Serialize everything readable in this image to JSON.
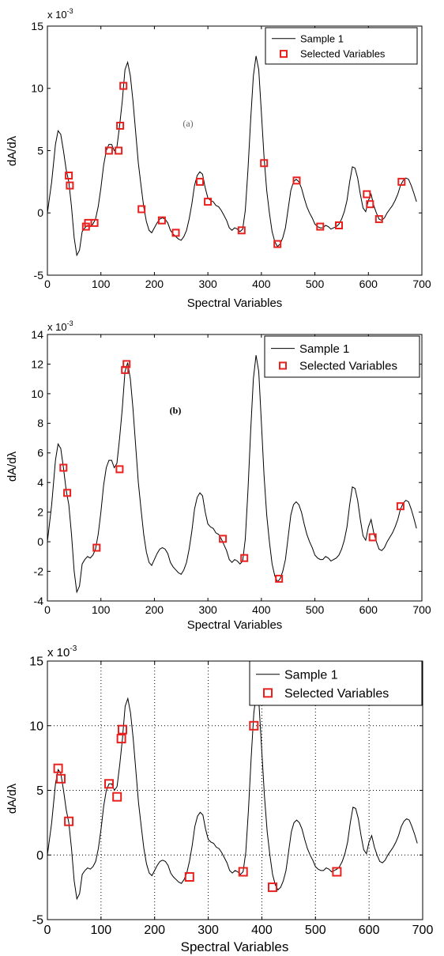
{
  "chart_data": [
    {
      "type": "line",
      "annotation": "(a)",
      "annotation_color": "#666666",
      "scale_label": "x 10",
      "scale_exponent": "-3",
      "xlabel": "Spectral Variables",
      "ylabel": "dA/dλ",
      "xlim": [
        0,
        700
      ],
      "ylim": [
        -5,
        15
      ],
      "xticks": [
        0,
        100,
        200,
        300,
        400,
        500,
        600,
        700
      ],
      "yticks": [
        -5,
        0,
        5,
        10,
        15
      ],
      "grid": false,
      "legend_position": "top-right",
      "series": [
        {
          "name": "Sample 1",
          "kind": "line",
          "color": "#000000",
          "x": [
            0,
            8,
            15,
            20,
            25,
            30,
            35,
            40,
            45,
            50,
            55,
            60,
            65,
            70,
            75,
            80,
            85,
            90,
            95,
            100,
            105,
            110,
            115,
            120,
            125,
            130,
            135,
            140,
            145,
            150,
            155,
            160,
            165,
            170,
            175,
            180,
            185,
            190,
            195,
            200,
            205,
            210,
            215,
            220,
            225,
            230,
            235,
            240,
            245,
            250,
            255,
            260,
            265,
            270,
            275,
            280,
            285,
            290,
            295,
            300,
            305,
            310,
            315,
            320,
            325,
            330,
            335,
            340,
            345,
            350,
            355,
            360,
            365,
            370,
            375,
            380,
            385,
            390,
            395,
            400,
            405,
            410,
            415,
            420,
            425,
            430,
            435,
            440,
            445,
            450,
            455,
            460,
            465,
            470,
            475,
            480,
            485,
            490,
            495,
            500,
            505,
            510,
            515,
            520,
            525,
            530,
            535,
            540,
            545,
            550,
            555,
            560,
            565,
            570,
            575,
            580,
            585,
            590,
            595,
            600,
            605,
            610,
            615,
            620,
            625,
            630,
            635,
            640,
            645,
            650,
            655,
            660,
            665,
            670,
            675,
            680,
            685,
            690
          ],
          "y": [
            0,
            2.5,
            5.5,
            6.6,
            6.3,
            5,
            3.5,
            2.5,
            0.5,
            -2,
            -3.4,
            -3,
            -1.5,
            -1.2,
            -1,
            -1.1,
            -0.9,
            -0.5,
            0.5,
            2,
            3.8,
            5,
            5.5,
            5.5,
            5,
            5.3,
            7,
            9,
            11.5,
            12.1,
            11,
            9,
            6.5,
            4,
            2.2,
            0.5,
            -0.7,
            -1.4,
            -1.6,
            -1.2,
            -0.8,
            -0.5,
            -0.4,
            -0.5,
            -0.8,
            -1.4,
            -1.7,
            -1.9,
            -2.1,
            -2.2,
            -1.9,
            -1.4,
            -0.5,
            0.7,
            2.2,
            3,
            3.3,
            3.1,
            2,
            1.2,
            1,
            0.9,
            0.6,
            0.5,
            0.2,
            -0.2,
            -0.6,
            -1.2,
            -1.4,
            -1.2,
            -1.3,
            -1.5,
            -1.3,
            0.2,
            3.5,
            7.5,
            11,
            12.6,
            11.5,
            8,
            4.5,
            1.8,
            0,
            -1.5,
            -2.3,
            -2.7,
            -2.5,
            -2,
            -1.2,
            0.3,
            1.8,
            2.5,
            2.7,
            2.5,
            2,
            1.2,
            0.5,
            0,
            -0.4,
            -0.9,
            -1.1,
            -1.2,
            -1.2,
            -1,
            -1.1,
            -1.3,
            -1.2,
            -1.1,
            -0.9,
            -0.5,
            0.1,
            1,
            2.5,
            3.7,
            3.6,
            2.8,
            1.5,
            0.4,
            0.1,
            1,
            1.5,
            0.6,
            0,
            -0.5,
            -0.6,
            -0.4,
            0,
            0.3,
            0.6,
            1,
            1.5,
            2.2,
            2.6,
            2.8,
            2.7,
            2.2,
            1.6,
            0.9
          ]
        },
        {
          "name": "Selected Variables",
          "kind": "markers",
          "color": "#e8201e",
          "x": [
            40,
            42,
            72,
            76,
            88,
            115,
            133,
            136,
            142,
            176,
            214,
            240,
            285,
            300,
            363,
            405,
            430,
            466,
            510,
            545,
            597,
            603,
            620,
            662
          ],
          "y": [
            3,
            2.2,
            -1.1,
            -0.8,
            -0.8,
            5,
            5,
            7,
            10.2,
            0.3,
            -0.6,
            -1.6,
            2.5,
            0.9,
            -1.4,
            4,
            -2.5,
            2.6,
            -1.1,
            -1,
            1.5,
            0.7,
            -0.5,
            2.5
          ]
        }
      ]
    },
    {
      "type": "line",
      "annotation": "(b)",
      "annotation_color": "#000000",
      "scale_label": "x 10",
      "scale_exponent": "-3",
      "xlabel": "Spectral Variables",
      "ylabel": "dA/dλ",
      "xlim": [
        0,
        700
      ],
      "ylim": [
        -4,
        14
      ],
      "xticks": [
        0,
        100,
        200,
        300,
        400,
        500,
        600,
        700
      ],
      "yticks": [
        -4,
        -2,
        0,
        2,
        4,
        6,
        8,
        10,
        12,
        14
      ],
      "grid": false,
      "legend_position": "top-right",
      "series": [
        {
          "name": "Sample 1",
          "kind": "line",
          "color": "#000000",
          "x": [
            0,
            8,
            15,
            20,
            25,
            30,
            35,
            40,
            45,
            50,
            55,
            60,
            65,
            70,
            75,
            80,
            85,
            90,
            95,
            100,
            105,
            110,
            115,
            120,
            125,
            130,
            135,
            140,
            145,
            150,
            155,
            160,
            165,
            170,
            175,
            180,
            185,
            190,
            195,
            200,
            205,
            210,
            215,
            220,
            225,
            230,
            235,
            240,
            245,
            250,
            255,
            260,
            265,
            270,
            275,
            280,
            285,
            290,
            295,
            300,
            305,
            310,
            315,
            320,
            325,
            330,
            335,
            340,
            345,
            350,
            355,
            360,
            365,
            370,
            375,
            380,
            385,
            390,
            395,
            400,
            405,
            410,
            415,
            420,
            425,
            430,
            435,
            440,
            445,
            450,
            455,
            460,
            465,
            470,
            475,
            480,
            485,
            490,
            495,
            500,
            505,
            510,
            515,
            520,
            525,
            530,
            535,
            540,
            545,
            550,
            555,
            560,
            565,
            570,
            575,
            580,
            585,
            590,
            595,
            600,
            605,
            610,
            615,
            620,
            625,
            630,
            635,
            640,
            645,
            650,
            655,
            660,
            665,
            670,
            675,
            680,
            685,
            690
          ],
          "y": [
            0,
            2.5,
            5.5,
            6.6,
            6.3,
            5,
            3.5,
            2.5,
            0.5,
            -2,
            -3.4,
            -3,
            -1.5,
            -1.2,
            -1,
            -1.1,
            -0.9,
            -0.5,
            0.5,
            2,
            3.8,
            5,
            5.5,
            5.5,
            5,
            5.3,
            7,
            9,
            11.5,
            12.1,
            11,
            9,
            6.5,
            4,
            2.2,
            0.5,
            -0.7,
            -1.4,
            -1.6,
            -1.2,
            -0.8,
            -0.5,
            -0.4,
            -0.5,
            -0.8,
            -1.4,
            -1.7,
            -1.9,
            -2.1,
            -2.2,
            -1.9,
            -1.4,
            -0.5,
            0.7,
            2.2,
            3,
            3.3,
            3.1,
            2,
            1.2,
            1,
            0.9,
            0.6,
            0.5,
            0.2,
            -0.2,
            -0.6,
            -1.2,
            -1.4,
            -1.2,
            -1.3,
            -1.5,
            -1.3,
            0.2,
            3.5,
            7.5,
            11,
            12.6,
            11.5,
            8,
            4.5,
            1.8,
            0,
            -1.5,
            -2.3,
            -2.7,
            -2.5,
            -2,
            -1.2,
            0.3,
            1.8,
            2.5,
            2.7,
            2.5,
            2,
            1.2,
            0.5,
            0,
            -0.4,
            -0.9,
            -1.1,
            -1.2,
            -1.2,
            -1,
            -1.1,
            -1.3,
            -1.2,
            -1.1,
            -0.9,
            -0.5,
            0.1,
            1,
            2.5,
            3.7,
            3.6,
            2.8,
            1.5,
            0.4,
            0.1,
            1,
            1.5,
            0.6,
            0,
            -0.5,
            -0.6,
            -0.4,
            0,
            0.3,
            0.6,
            1,
            1.5,
            2.2,
            2.6,
            2.8,
            2.7,
            2.2,
            1.6,
            0.9
          ]
        },
        {
          "name": "Selected Variables",
          "kind": "markers",
          "color": "#e8201e",
          "x": [
            30,
            37,
            92,
            135,
            145,
            148,
            328,
            368,
            433,
            608,
            660
          ],
          "y": [
            5,
            3.3,
            -0.4,
            4.9,
            11.6,
            12,
            0.2,
            -1.1,
            -2.5,
            0.3,
            2.4
          ]
        }
      ]
    },
    {
      "type": "line",
      "scale_label": "x 10",
      "scale_exponent": "-3",
      "xlabel": "Spectral Variables",
      "ylabel": "dA/dλ",
      "xlim": [
        0,
        700
      ],
      "ylim": [
        -5,
        15
      ],
      "xticks": [
        0,
        100,
        200,
        300,
        400,
        500,
        600,
        700
      ],
      "yticks": [
        -5,
        0,
        5,
        10,
        15
      ],
      "grid": true,
      "legend_position": "top-right",
      "series": [
        {
          "name": "Sample 1",
          "kind": "line",
          "color": "#000000",
          "x": [
            0,
            8,
            15,
            20,
            25,
            30,
            35,
            40,
            45,
            50,
            55,
            60,
            65,
            70,
            75,
            80,
            85,
            90,
            95,
            100,
            105,
            110,
            115,
            120,
            125,
            130,
            135,
            140,
            145,
            150,
            155,
            160,
            165,
            170,
            175,
            180,
            185,
            190,
            195,
            200,
            205,
            210,
            215,
            220,
            225,
            230,
            235,
            240,
            245,
            250,
            255,
            260,
            265,
            270,
            275,
            280,
            285,
            290,
            295,
            300,
            305,
            310,
            315,
            320,
            325,
            330,
            335,
            340,
            345,
            350,
            355,
            360,
            365,
            370,
            375,
            380,
            385,
            390,
            395,
            400,
            405,
            410,
            415,
            420,
            425,
            430,
            435,
            440,
            445,
            450,
            455,
            460,
            465,
            470,
            475,
            480,
            485,
            490,
            495,
            500,
            505,
            510,
            515,
            520,
            525,
            530,
            535,
            540,
            545,
            550,
            555,
            560,
            565,
            570,
            575,
            580,
            585,
            590,
            595,
            600,
            605,
            610,
            615,
            620,
            625,
            630,
            635,
            640,
            645,
            650,
            655,
            660,
            665,
            670,
            675,
            680,
            685,
            690
          ],
          "y": [
            0,
            2.5,
            5.5,
            6.6,
            6.3,
            5,
            3.5,
            2.5,
            0.5,
            -2,
            -3.4,
            -3,
            -1.5,
            -1.2,
            -1,
            -1.1,
            -0.9,
            -0.5,
            0.5,
            2,
            3.8,
            5,
            5.5,
            5.5,
            5,
            5.3,
            7,
            9,
            11.5,
            12.1,
            11,
            9,
            6.5,
            4,
            2.2,
            0.5,
            -0.7,
            -1.4,
            -1.6,
            -1.2,
            -0.8,
            -0.5,
            -0.4,
            -0.5,
            -0.8,
            -1.4,
            -1.7,
            -1.9,
            -2.1,
            -2.2,
            -1.9,
            -1.4,
            -0.5,
            0.7,
            2.2,
            3,
            3.3,
            3.1,
            2,
            1.2,
            1,
            0.9,
            0.6,
            0.5,
            0.2,
            -0.2,
            -0.6,
            -1.2,
            -1.4,
            -1.2,
            -1.3,
            -1.5,
            -1.3,
            0.2,
            3.5,
            7.5,
            11,
            12.6,
            11.5,
            8,
            4.5,
            1.8,
            0,
            -1.5,
            -2.3,
            -2.7,
            -2.5,
            -2,
            -1.2,
            0.3,
            1.8,
            2.5,
            2.7,
            2.5,
            2,
            1.2,
            0.5,
            0,
            -0.4,
            -0.9,
            -1.1,
            -1.2,
            -1.2,
            -1,
            -1.1,
            -1.3,
            -1.2,
            -1.1,
            -0.9,
            -0.5,
            0.1,
            1,
            2.5,
            3.7,
            3.6,
            2.8,
            1.5,
            0.4,
            0.1,
            1,
            1.5,
            0.6,
            0,
            -0.5,
            -0.6,
            -0.4,
            0,
            0.3,
            0.6,
            1,
            1.5,
            2.2,
            2.6,
            2.8,
            2.7,
            2.2,
            1.6,
            0.9
          ]
        },
        {
          "name": "Selected Variables",
          "kind": "markers",
          "color": "#e8201e",
          "x": [
            20,
            25,
            40,
            115,
            130,
            138,
            140,
            265,
            365,
            385,
            420,
            540
          ],
          "y": [
            6.7,
            5.9,
            2.6,
            5.5,
            4.5,
            9,
            9.7,
            -1.7,
            -1.3,
            10,
            -2.5,
            -1.3
          ]
        }
      ]
    }
  ]
}
